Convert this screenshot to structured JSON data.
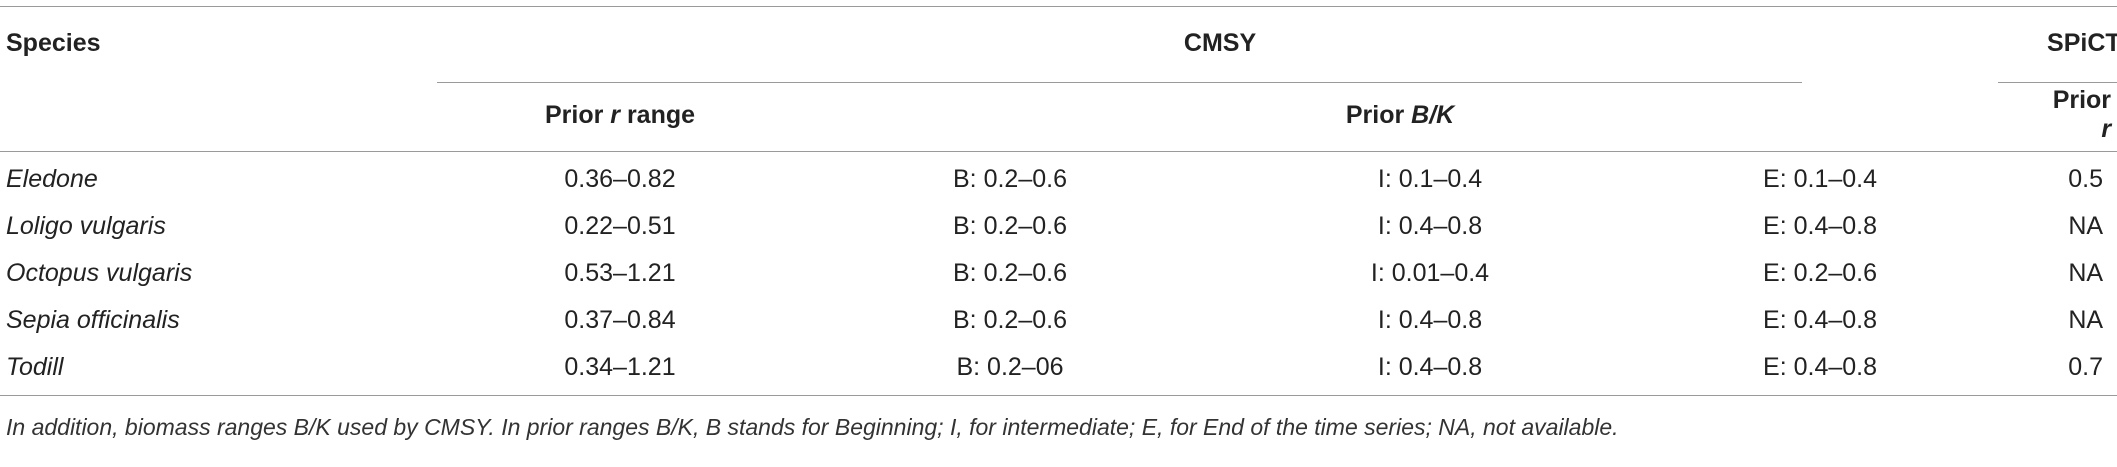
{
  "table": {
    "header_species": "Species",
    "header_cmsy": "CMSY",
    "header_spict": "SPiCT",
    "sub_prior_r_range_pre": "Prior ",
    "sub_prior_r_range_var": "r",
    "sub_prior_r_range_post": " range",
    "sub_prior_bk_pre": "Prior ",
    "sub_prior_bk_var": "B/K",
    "sub_prior_r_pre": "Prior ",
    "sub_prior_r_var": "r",
    "rows": [
      {
        "species": "Eledone",
        "r_range": "0.36–0.82",
        "b": "B: 0.2–0.6",
        "i": "I: 0.1–0.4",
        "e": "E: 0.1–0.4",
        "spict_r": "0.5"
      },
      {
        "species": "Loligo vulgaris",
        "r_range": "0.22–0.51",
        "b": "B: 0.2–0.6",
        "i": "I: 0.4–0.8",
        "e": "E: 0.4–0.8",
        "spict_r": "NA"
      },
      {
        "species": "Octopus vulgaris",
        "r_range": "0.53–1.21",
        "b": "B: 0.2–0.6",
        "i": "I: 0.01–0.4",
        "e": "E: 0.2–0.6",
        "spict_r": "NA"
      },
      {
        "species": "Sepia officinalis",
        "r_range": "0.37–0.84",
        "b": "B: 0.2–0.6",
        "i": "I: 0.4–0.8",
        "e": "E: 0.4–0.8",
        "spict_r": "NA"
      },
      {
        "species": "Todill",
        "r_range": "0.34–1.21",
        "b": "B: 0.2–06",
        "i": "I: 0.4–0.8",
        "e": "E: 0.4–0.8",
        "spict_r": "0.7"
      }
    ]
  },
  "footnote": "In addition, biomass ranges B/K used by CMSY. In prior ranges B/K, B stands for Beginning; I, for intermediate; E, for End of the time series; NA, not available."
}
